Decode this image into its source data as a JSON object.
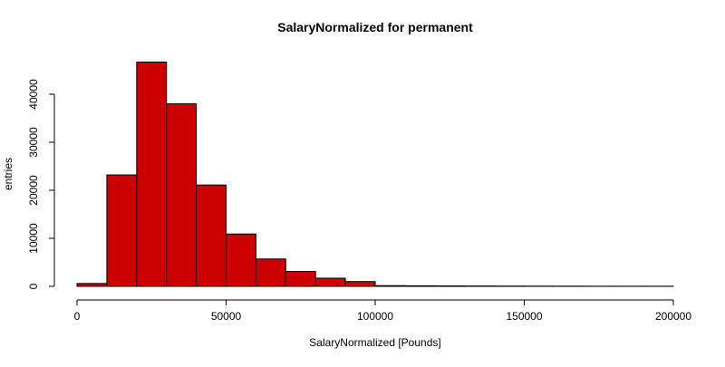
{
  "chart_data": {
    "type": "bar",
    "title": "SalaryNormalized for permanent",
    "xlabel": "SalaryNormalized [Pounds]",
    "ylabel": "entries",
    "bin_width": 10000,
    "bin_starts": [
      0,
      10000,
      20000,
      30000,
      40000,
      50000,
      60000,
      70000,
      80000,
      90000,
      100000,
      110000,
      120000,
      130000,
      140000,
      150000,
      160000,
      170000,
      180000,
      190000
    ],
    "values": [
      600,
      23200,
      46700,
      38000,
      21100,
      10900,
      5700,
      3100,
      1700,
      1000,
      150,
      120,
      100,
      80,
      60,
      50,
      40,
      30,
      30,
      30
    ],
    "xlim": [
      0,
      200000
    ],
    "ylim": [
      0,
      40000
    ],
    "x_ticks": [
      0,
      50000,
      100000,
      150000,
      200000
    ],
    "y_ticks": [
      0,
      10000,
      20000,
      30000,
      40000
    ],
    "x_tick_labels": [
      "0",
      "50000",
      "100000",
      "150000",
      "200000"
    ],
    "y_tick_labels": [
      "0",
      "10000",
      "20000",
      "30000",
      "40000"
    ],
    "bar_color": "#CC0000",
    "bar_edge_color": "#000000",
    "grid": false,
    "legend": "none"
  }
}
